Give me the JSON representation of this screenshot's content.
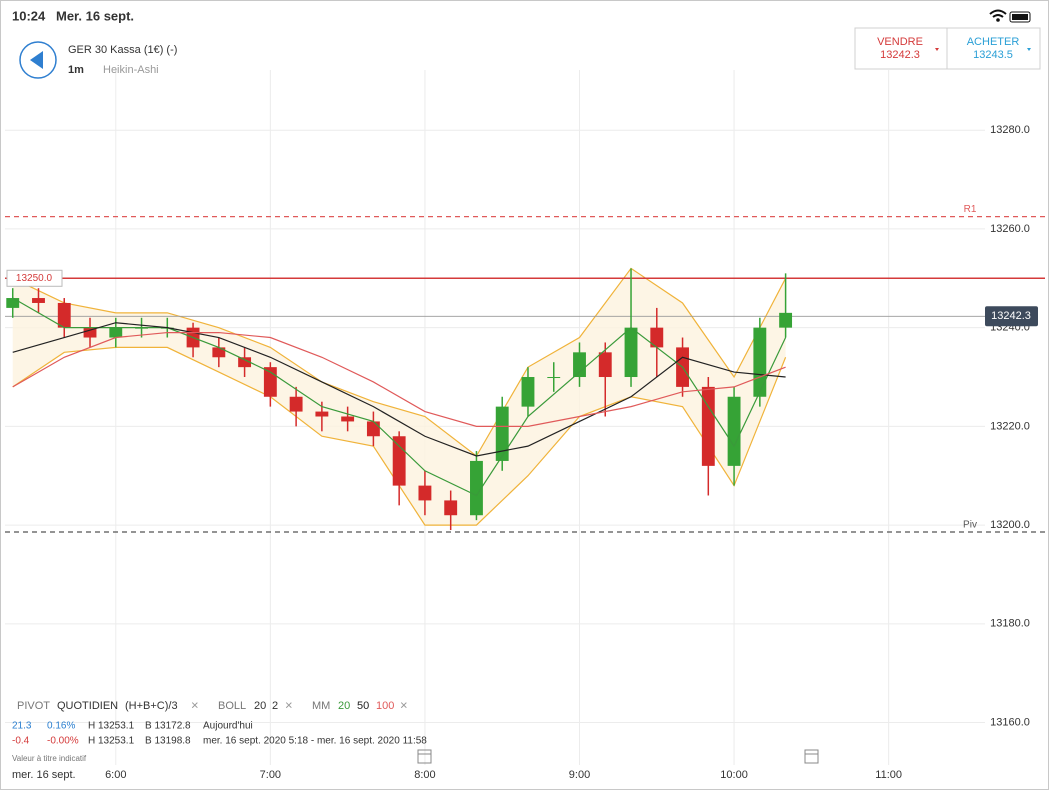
{
  "status_bar": {
    "time": "10:24",
    "date": "Mer. 16 sept."
  },
  "header": {
    "title": "GER 30 Kassa (1€) (-)",
    "interval": "1m",
    "chart_style": "Heikin-Ashi",
    "sell": {
      "label": "VENDRE",
      "price": "13242.3"
    },
    "buy": {
      "label": "ACHETER",
      "price": "13243.5"
    }
  },
  "indicators": {
    "pivot": {
      "name": "PIVOT",
      "period": "QUOTIDIEN",
      "formula": "(H+B+C)/3",
      "close": "×"
    },
    "boll": {
      "name": "BOLL",
      "length": "20",
      "deviation": "2",
      "close": "×"
    },
    "mm": {
      "name": "MM",
      "close": "×"
    },
    "rows": [
      [
        "21.3",
        "0.16%",
        "H 13253.1",
        "B 13172.8",
        "Aujourd'hui"
      ],
      [
        "-0.4",
        "-0.00%",
        "H 13253.1",
        "B 13198.8",
        "mer. 16 sept. 2020 5:18 - mer. 16 sept. 2020 11:58"
      ]
    ],
    "note": "Valeur à titre indicatif"
  },
  "chart_data": {
    "type": "candlestick",
    "x_axis_date": "mer. 16 sept.",
    "xlim": [
      317,
      697.4
    ],
    "xticks": [
      {
        "value": 360,
        "label": "6:00"
      },
      {
        "value": 420,
        "label": "7:00"
      },
      {
        "value": 480,
        "label": "8:00"
      },
      {
        "value": 540,
        "label": "9:00"
      },
      {
        "value": 600,
        "label": "10:00"
      },
      {
        "value": 660,
        "label": "11:00"
      }
    ],
    "ylim": [
      13151.4,
      13300.3
    ],
    "yticks": [
      {
        "value": 13160,
        "label": "13160.0"
      },
      {
        "value": 13180,
        "label": "13180.0"
      },
      {
        "value": 13200,
        "label": "13200.0"
      },
      {
        "value": 13220,
        "label": "13220.0"
      },
      {
        "value": 13240,
        "label": "13240.0"
      },
      {
        "value": 13260,
        "label": "13260.0"
      },
      {
        "value": 13280,
        "label": "13280.0"
      }
    ],
    "grid": true,
    "up_color": "#36a336",
    "down_color": "#d42a2a",
    "candles": {
      "x": [
        320,
        330,
        340,
        350,
        360,
        370,
        380,
        390,
        400,
        410,
        420,
        430,
        440,
        450,
        460,
        470,
        480,
        490,
        500,
        510,
        520,
        530,
        540,
        550,
        560,
        570,
        580,
        590,
        600,
        610,
        620
      ],
      "open": [
        13244,
        13246,
        13245,
        13240,
        13238,
        13240,
        13240,
        13240,
        13236,
        13234,
        13232,
        13226,
        13223,
        13222,
        13221,
        13218,
        13208,
        13205,
        13202,
        13213,
        13224,
        13230,
        13230,
        13235,
        13230,
        13240,
        13236,
        13228,
        13212,
        13226,
        13240
      ],
      "high": [
        13248,
        13248,
        13246,
        13242,
        13242,
        13242,
        13242,
        13241,
        13238,
        13236,
        13233,
        13228,
        13225,
        13224,
        13223,
        13219,
        13211,
        13207,
        13215,
        13226,
        13232,
        13233,
        13237,
        13237,
        13252,
        13244,
        13238,
        13230,
        13228,
        13242,
        13251
      ],
      "low": [
        13242,
        13243,
        13238,
        13236,
        13236,
        13238,
        13238,
        13234,
        13232,
        13230,
        13224,
        13220,
        13219,
        13219,
        13216,
        13204,
        13202,
        13199,
        13201,
        13211,
        13222,
        13227,
        13228,
        13222,
        13228,
        13230,
        13226,
        13206,
        13208,
        13224,
        13238
      ],
      "close": [
        13246,
        13245,
        13240,
        13238,
        13240,
        13240,
        13240,
        13236,
        13234,
        13232,
        13226,
        13223,
        13222,
        13221,
        13218,
        13208,
        13205,
        13202,
        13213,
        13224,
        13230,
        13230,
        13235,
        13230,
        13240,
        13236,
        13228,
        13212,
        13226,
        13240,
        13243
      ]
    },
    "bollinger": {
      "color": "#f0b33a",
      "fill": "#fdf3df",
      "x": [
        320,
        340,
        360,
        380,
        400,
        420,
        440,
        460,
        480,
        500,
        520,
        540,
        560,
        580,
        600,
        620
      ],
      "upper": [
        13250,
        13245,
        13243,
        13243,
        13240,
        13236,
        13229,
        13225,
        13222,
        13214,
        13232,
        13238,
        13252,
        13245,
        13230,
        13250
      ],
      "lower": [
        13228,
        13235,
        13236,
        13236,
        13231,
        13226,
        13218,
        13216,
        13200,
        13200,
        13210,
        13222,
        13226,
        13224,
        13208,
        13234
      ]
    },
    "series": [
      {
        "name": "20",
        "color": "#3a9a3a",
        "x": [
          320,
          340,
          360,
          380,
          400,
          420,
          440,
          460,
          480,
          500,
          520,
          540,
          560,
          580,
          600,
          620
        ],
        "values": [
          13246,
          13240,
          13240,
          13240,
          13236,
          13231,
          13224,
          13221,
          13211,
          13206,
          13222,
          13231,
          13240,
          13232,
          13216,
          13238
        ]
      },
      {
        "name": "50",
        "color": "#222222",
        "x": [
          320,
          340,
          360,
          380,
          400,
          420,
          440,
          460,
          480,
          500,
          520,
          540,
          560,
          580,
          600,
          620
        ],
        "values": [
          13235,
          13238,
          13241,
          13240,
          13238,
          13234,
          13229,
          13224,
          13218,
          13214,
          13216,
          13221,
          13226,
          13234,
          13231,
          13230
        ]
      },
      {
        "name": "100",
        "color": "#e05a5a",
        "x": [
          320,
          340,
          360,
          380,
          400,
          420,
          440,
          460,
          480,
          500,
          520,
          540,
          560,
          580,
          600,
          620
        ],
        "values": [
          13228,
          13234,
          13238,
          13239,
          13239,
          13238,
          13234,
          13229,
          13223,
          13220,
          13220,
          13222,
          13224,
          13227,
          13228,
          13232
        ]
      }
    ],
    "levels": [
      {
        "name": "R1",
        "value": 13262.5,
        "color": "#e05a5a",
        "dashed": true
      },
      {
        "name": "Piv",
        "value": 13198.6,
        "color": "#555555",
        "dashed": true
      }
    ],
    "alert_line": {
      "value": 13250,
      "label": "13250.0",
      "color": "#d43a3a"
    },
    "price_line": {
      "value": 13242.3,
      "label": "13242.3",
      "color": "#3d4a5c"
    }
  }
}
